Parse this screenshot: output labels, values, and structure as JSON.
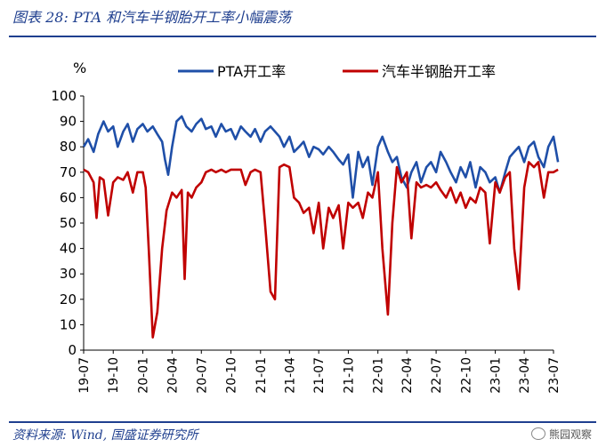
{
  "figure_title": "图表 28:  PTA 和汽车半钢胎开工率小幅震荡",
  "source_text": "资料来源:  Wind,  国盛证券研究所",
  "watermark_text": "熊园观察",
  "chart_data": {
    "type": "line",
    "ylabel": "%",
    "ylim": [
      0,
      100
    ],
    "yticks": [
      0,
      10,
      20,
      30,
      40,
      50,
      60,
      70,
      80,
      90,
      100
    ],
    "xticks": [
      "19-07",
      "19-10",
      "20-01",
      "20-04",
      "20-07",
      "20-10",
      "21-01",
      "21-04",
      "21-07",
      "21-10",
      "22-01",
      "22-04",
      "22-07",
      "22-10",
      "23-01",
      "23-04",
      "23-07"
    ],
    "xrange": [
      "2019-07",
      "2023-07"
    ],
    "legend": {
      "position": "top"
    },
    "grid": false,
    "series": [
      {
        "name": "PTA开工率",
        "color": "#1f4fa8",
        "x": [
          "2019-07-01",
          "2019-07-15",
          "2019-08-01",
          "2019-08-15",
          "2019-09-01",
          "2019-09-15",
          "2019-10-01",
          "2019-10-15",
          "2019-11-01",
          "2019-11-15",
          "2019-12-01",
          "2019-12-15",
          "2020-01-01",
          "2020-01-15",
          "2020-02-01",
          "2020-02-15",
          "2020-03-01",
          "2020-03-10",
          "2020-03-20",
          "2020-04-01",
          "2020-04-15",
          "2020-05-01",
          "2020-05-15",
          "2020-06-01",
          "2020-06-15",
          "2020-07-01",
          "2020-07-15",
          "2020-08-01",
          "2020-08-15",
          "2020-09-01",
          "2020-09-15",
          "2020-10-01",
          "2020-10-15",
          "2020-11-01",
          "2020-11-15",
          "2020-12-01",
          "2020-12-15",
          "2021-01-01",
          "2021-01-15",
          "2021-02-01",
          "2021-02-15",
          "2021-03-01",
          "2021-03-15",
          "2021-04-01",
          "2021-04-15",
          "2021-05-01",
          "2021-05-15",
          "2021-06-01",
          "2021-06-15",
          "2021-07-01",
          "2021-07-15",
          "2021-08-01",
          "2021-08-15",
          "2021-09-01",
          "2021-09-15",
          "2021-10-01",
          "2021-10-15",
          "2021-11-01",
          "2021-11-15",
          "2021-12-01",
          "2021-12-15",
          "2022-01-01",
          "2022-01-15",
          "2022-02-01",
          "2022-02-15",
          "2022-03-01",
          "2022-03-15",
          "2022-04-01",
          "2022-04-15",
          "2022-05-01",
          "2022-05-15",
          "2022-06-01",
          "2022-06-15",
          "2022-07-01",
          "2022-07-15",
          "2022-08-01",
          "2022-08-15",
          "2022-09-01",
          "2022-09-15",
          "2022-10-01",
          "2022-10-15",
          "2022-11-01",
          "2022-11-15",
          "2022-12-01",
          "2022-12-15",
          "2023-01-01",
          "2023-01-15",
          "2023-02-01",
          "2023-02-15",
          "2023-03-01",
          "2023-03-15",
          "2023-04-01",
          "2023-04-15",
          "2023-05-01",
          "2023-05-15",
          "2023-06-01",
          "2023-06-15",
          "2023-07-01",
          "2023-07-15"
        ],
        "values": [
          80,
          83,
          78,
          85,
          90,
          86,
          88,
          80,
          86,
          89,
          82,
          87,
          89,
          86,
          88,
          85,
          82,
          75,
          69,
          80,
          90,
          92,
          88,
          86,
          89,
          91,
          87,
          88,
          84,
          89,
          86,
          87,
          83,
          88,
          86,
          84,
          87,
          82,
          86,
          88,
          86,
          84,
          80,
          84,
          78,
          80,
          82,
          76,
          80,
          79,
          77,
          80,
          78,
          75,
          73,
          77,
          60,
          78,
          72,
          76,
          65,
          80,
          84,
          78,
          74,
          76,
          68,
          64,
          70,
          74,
          66,
          72,
          74,
          70,
          78,
          74,
          70,
          66,
          72,
          68,
          74,
          64,
          72,
          70,
          66,
          68,
          62,
          70,
          76,
          78,
          80,
          74,
          80,
          82,
          76,
          72,
          80,
          84,
          74
        ]
      },
      {
        "name": "汽车半钢胎开工率",
        "color": "#c00000",
        "x": [
          "2019-07-01",
          "2019-07-15",
          "2019-08-01",
          "2019-08-10",
          "2019-08-20",
          "2019-09-01",
          "2019-09-15",
          "2019-10-01",
          "2019-10-15",
          "2019-11-01",
          "2019-11-15",
          "2019-12-01",
          "2019-12-15",
          "2020-01-01",
          "2020-01-10",
          "2020-01-20",
          "2020-02-01",
          "2020-02-15",
          "2020-03-01",
          "2020-03-15",
          "2020-04-01",
          "2020-04-15",
          "2020-05-01",
          "2020-05-10",
          "2020-05-20",
          "2020-06-01",
          "2020-06-15",
          "2020-07-01",
          "2020-07-15",
          "2020-08-01",
          "2020-08-15",
          "2020-09-01",
          "2020-09-15",
          "2020-10-01",
          "2020-10-15",
          "2020-11-01",
          "2020-11-15",
          "2020-12-01",
          "2020-12-15",
          "2021-01-01",
          "2021-01-15",
          "2021-02-01",
          "2021-02-15",
          "2021-03-01",
          "2021-03-15",
          "2021-04-01",
          "2021-04-15",
          "2021-05-01",
          "2021-05-15",
          "2021-06-01",
          "2021-06-15",
          "2021-07-01",
          "2021-07-15",
          "2021-08-01",
          "2021-08-15",
          "2021-09-01",
          "2021-09-15",
          "2021-10-01",
          "2021-10-15",
          "2021-11-01",
          "2021-11-15",
          "2021-12-01",
          "2021-12-15",
          "2022-01-01",
          "2022-01-15",
          "2022-02-01",
          "2022-02-15",
          "2022-03-01",
          "2022-03-15",
          "2022-04-01",
          "2022-04-15",
          "2022-05-01",
          "2022-05-15",
          "2022-06-01",
          "2022-06-15",
          "2022-07-01",
          "2022-07-15",
          "2022-08-01",
          "2022-08-15",
          "2022-09-01",
          "2022-09-15",
          "2022-10-01",
          "2022-10-15",
          "2022-11-01",
          "2022-11-15",
          "2022-12-01",
          "2022-12-15",
          "2023-01-01",
          "2023-01-15",
          "2023-02-01",
          "2023-02-15",
          "2023-03-01",
          "2023-03-15",
          "2023-04-01",
          "2023-04-15",
          "2023-05-01",
          "2023-05-15",
          "2023-06-01",
          "2023-06-15",
          "2023-07-01",
          "2023-07-15"
        ],
        "values": [
          71,
          70,
          66,
          52,
          68,
          67,
          53,
          66,
          68,
          67,
          70,
          62,
          70,
          70,
          64,
          38,
          5,
          15,
          40,
          55,
          62,
          60,
          63,
          28,
          62,
          60,
          64,
          66,
          70,
          71,
          70,
          71,
          70,
          71,
          71,
          71,
          65,
          70,
          71,
          70,
          50,
          23,
          20,
          72,
          73,
          72,
          60,
          58,
          54,
          56,
          46,
          58,
          40,
          56,
          52,
          57,
          40,
          58,
          56,
          58,
          52,
          62,
          60,
          70,
          40,
          14,
          50,
          72,
          66,
          70,
          44,
          66,
          64,
          65,
          64,
          66,
          63,
          60,
          64,
          58,
          62,
          56,
          60,
          58,
          64,
          62,
          42,
          66,
          62,
          68,
          70,
          40,
          24,
          64,
          74,
          72,
          74,
          60,
          70,
          70,
          71
        ]
      }
    ]
  }
}
